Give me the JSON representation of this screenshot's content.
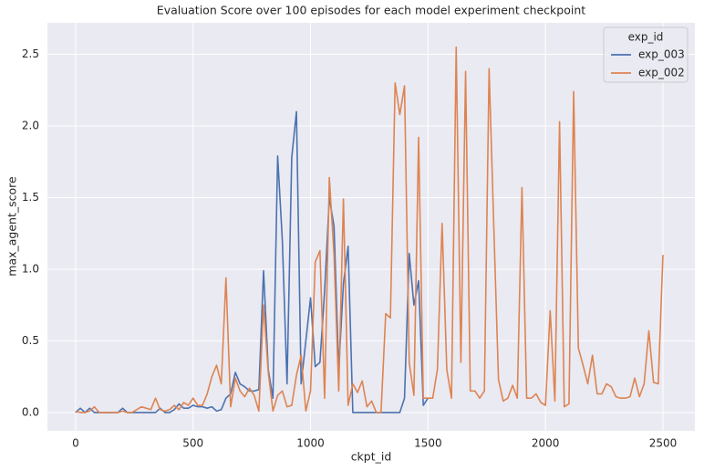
{
  "chart_data": {
    "type": "line",
    "title": "Evaluation Score over 100 episodes for each model experiment checkpoint",
    "x_label": "ckpt_id",
    "y_label": "max_agent_score",
    "legend_title": "exp_id",
    "legend_position": "upper right",
    "grid": true,
    "xlim": [
      -120,
      2636
    ],
    "ylim": [
      -0.128,
      2.72
    ],
    "xticks": [
      0,
      500,
      1000,
      1500,
      2000,
      2500
    ],
    "yticks": [
      {
        "value": 0,
        "label": "0.0"
      },
      0.5,
      {
        "value": 1,
        "label": "1.0"
      },
      1.5,
      {
        "value": 2,
        "label": "2.0"
      },
      2.5
    ],
    "series": [
      {
        "name": "exp_003",
        "color": "#4c72b0",
        "x": [
          0,
          20,
          40,
          60,
          80,
          100,
          120,
          140,
          160,
          180,
          200,
          220,
          240,
          260,
          280,
          300,
          320,
          340,
          360,
          380,
          400,
          420,
          440,
          460,
          480,
          500,
          520,
          540,
          560,
          580,
          600,
          620,
          640,
          660,
          680,
          700,
          720,
          740,
          760,
          780,
          800,
          820,
          840,
          860,
          880,
          900,
          920,
          940,
          960,
          980,
          1000,
          1020,
          1040,
          1060,
          1080,
          1100,
          1120,
          1140,
          1160,
          1180,
          1200,
          1220,
          1240,
          1260,
          1280,
          1300,
          1320,
          1340,
          1360,
          1380,
          1400,
          1420,
          1440,
          1460,
          1480,
          1500
        ],
        "values": [
          0,
          0.03,
          0,
          0.03,
          0,
          0,
          0,
          0,
          0,
          0,
          0.03,
          0,
          0,
          0,
          0,
          0,
          0,
          0,
          0.03,
          0,
          0,
          0.02,
          0.06,
          0.03,
          0.03,
          0.05,
          0.04,
          0.04,
          0.03,
          0.04,
          0.01,
          0.02,
          0.1,
          0.13,
          0.28,
          0.2,
          0.18,
          0.15,
          0.15,
          0.16,
          0.99,
          0.3,
          0.1,
          1.79,
          1.2,
          0.2,
          1.78,
          2.1,
          0.2,
          0.5,
          0.8,
          0.32,
          0.35,
          0.85,
          1.5,
          1.3,
          0.3,
          0.9,
          1.16,
          0,
          0,
          0,
          0,
          0,
          0,
          0,
          0,
          0,
          0,
          0,
          0.1,
          1.11,
          0.75,
          0.92,
          0.05,
          0.1
        ]
      },
      {
        "name": "exp_002",
        "color": "#dd8452",
        "x": [
          0,
          20,
          40,
          60,
          80,
          100,
          120,
          140,
          160,
          180,
          200,
          220,
          240,
          260,
          280,
          300,
          320,
          340,
          360,
          380,
          400,
          420,
          440,
          460,
          480,
          500,
          520,
          540,
          560,
          580,
          600,
          620,
          640,
          660,
          680,
          700,
          720,
          740,
          760,
          780,
          800,
          820,
          840,
          860,
          880,
          900,
          920,
          940,
          960,
          980,
          1000,
          1020,
          1040,
          1060,
          1080,
          1100,
          1120,
          1140,
          1160,
          1180,
          1200,
          1220,
          1240,
          1260,
          1280,
          1300,
          1320,
          1340,
          1360,
          1380,
          1400,
          1420,
          1440,
          1460,
          1480,
          1500,
          1520,
          1540,
          1560,
          1580,
          1600,
          1620,
          1640,
          1660,
          1680,
          1700,
          1720,
          1740,
          1760,
          1780,
          1800,
          1820,
          1840,
          1860,
          1880,
          1900,
          1920,
          1940,
          1960,
          1980,
          2000,
          2020,
          2040,
          2060,
          2080,
          2100,
          2120,
          2140,
          2160,
          2180,
          2200,
          2220,
          2240,
          2260,
          2280,
          2300,
          2320,
          2340,
          2360,
          2380,
          2400,
          2420,
          2440,
          2460,
          2480,
          2500
        ],
        "values": [
          0.01,
          0,
          0,
          0.01,
          0.04,
          0,
          0,
          0,
          0,
          0,
          0.01,
          0,
          0,
          0.02,
          0.04,
          0.03,
          0.02,
          0.1,
          0.02,
          0.01,
          0.02,
          0.05,
          0.02,
          0.07,
          0.05,
          0.1,
          0.05,
          0.05,
          0.13,
          0.25,
          0.33,
          0.2,
          0.94,
          0.04,
          0.24,
          0.15,
          0.11,
          0.17,
          0.12,
          0.01,
          0.75,
          0.28,
          0.01,
          0.12,
          0.15,
          0.04,
          0.05,
          0.26,
          0.4,
          0.01,
          0.15,
          1.05,
          1.13,
          0.1,
          1.64,
          1.1,
          0.15,
          1.49,
          0.05,
          0.2,
          0.14,
          0.22,
          0.04,
          0.08,
          0,
          0,
          0.69,
          0.66,
          2.3,
          2.08,
          2.28,
          0.35,
          0.12,
          1.92,
          0.1,
          0.1,
          0.1,
          0.3,
          1.32,
          0.3,
          0.1,
          2.55,
          0.35,
          2.38,
          0.15,
          0.15,
          0.1,
          0.15,
          2.4,
          1.3,
          0.23,
          0.08,
          0.1,
          0.19,
          0.1,
          1.57,
          0.1,
          0.1,
          0.13,
          0.07,
          0.05,
          0.71,
          0.08,
          2.03,
          0.04,
          0.06,
          2.24,
          0.45,
          0.33,
          0.2,
          0.4,
          0.13,
          0.13,
          0.2,
          0.18,
          0.11,
          0.1,
          0.1,
          0.11,
          0.24,
          0.11,
          0.2,
          0.57,
          0.21,
          0.2,
          1.1
        ]
      }
    ]
  }
}
